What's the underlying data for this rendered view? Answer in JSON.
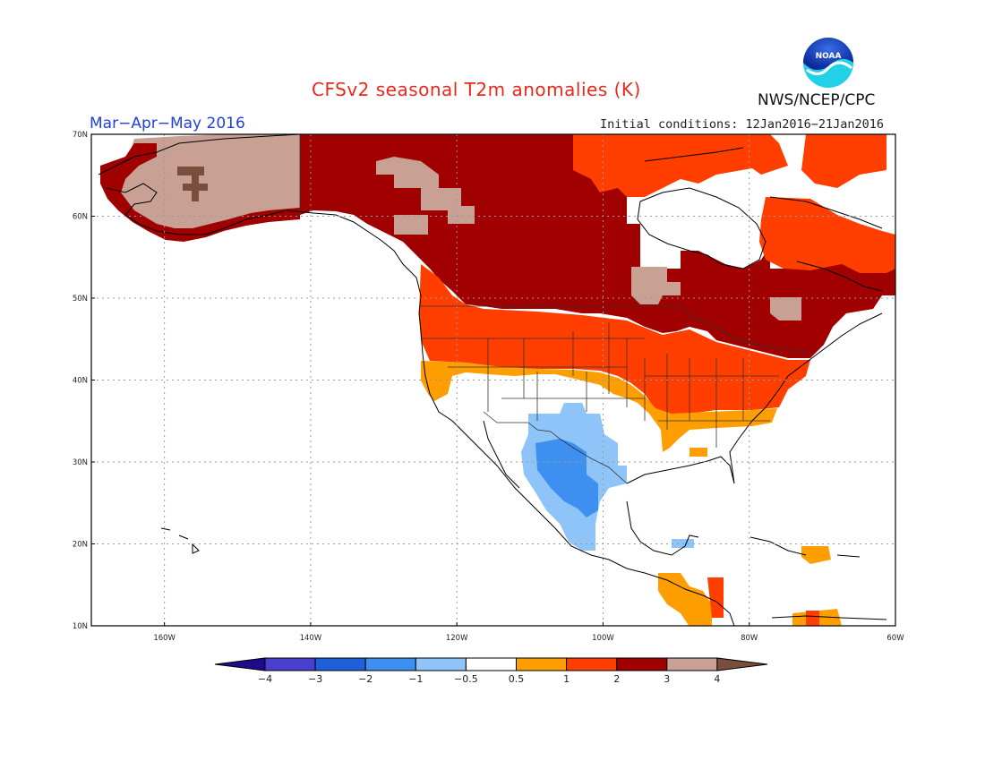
{
  "title": "CFSv2 seasonal T2m anomalies (K)",
  "agency": "NWS/NCEP/CPC",
  "season_label": "Mar−Apr−May 2016",
  "initial_conditions": "Initial conditions: 12Jan2016−21Jan2016",
  "logo_text": "NOAA",
  "map": {
    "projection": "equirectangular",
    "lon_range": [
      -170,
      -60
    ],
    "lat_range": [
      10,
      70
    ],
    "lat_ticks": [
      "10N",
      "20N",
      "30N",
      "40N",
      "50N",
      "60N",
      "70N"
    ],
    "lon_ticks": [
      "160W",
      "140W",
      "120W",
      "100W",
      "80W",
      "60W"
    ],
    "grid": "dotted",
    "colors": {
      "ocean": "#ffffff",
      "coast": "#000000",
      "grid": "#999999"
    }
  },
  "colorbar": {
    "labels": [
      "−4",
      "−3",
      "−2",
      "−1",
      "−0.5",
      "0.5",
      "1",
      "2",
      "3",
      "4"
    ],
    "colors": [
      "#1e0a8c",
      "#4b3fd0",
      "#1f5fdc",
      "#3d8ff0",
      "#8ec4f8",
      "#ffffff",
      "#ff9e00",
      "#ff3e00",
      "#a00000",
      "#c8a094",
      "#7a4e3c"
    ]
  },
  "anomaly_regions": [
    {
      "name": "Alaska interior",
      "category": "3 to 4",
      "color": "#c8a094"
    },
    {
      "name": "western Alaska spot",
      "category": "> 4",
      "color": "#7a4e3c"
    },
    {
      "name": "Canada",
      "category": "2 to 3",
      "color": "#a00000"
    },
    {
      "name": "Northern US",
      "category": "1 to 2",
      "color": "#ff3e00"
    },
    {
      "name": "Southern transition",
      "category": "0.5 to 1",
      "color": "#ff9e00"
    },
    {
      "name": "Southwest US / Northern Mexico",
      "category": "-1 to -0.5",
      "color": "#8ec4f8"
    },
    {
      "name": "Northwest Mexico core",
      "category": "-2 to -1",
      "color": "#3d8ff0"
    },
    {
      "name": "Hudson Bay",
      "category": "near normal",
      "color": "#ffffff"
    },
    {
      "name": "Quebec",
      "category": "1 to 2",
      "color": "#ff3e00"
    },
    {
      "name": "Central America",
      "category": "0.5 to 3",
      "color": "#ff9e00"
    }
  ]
}
